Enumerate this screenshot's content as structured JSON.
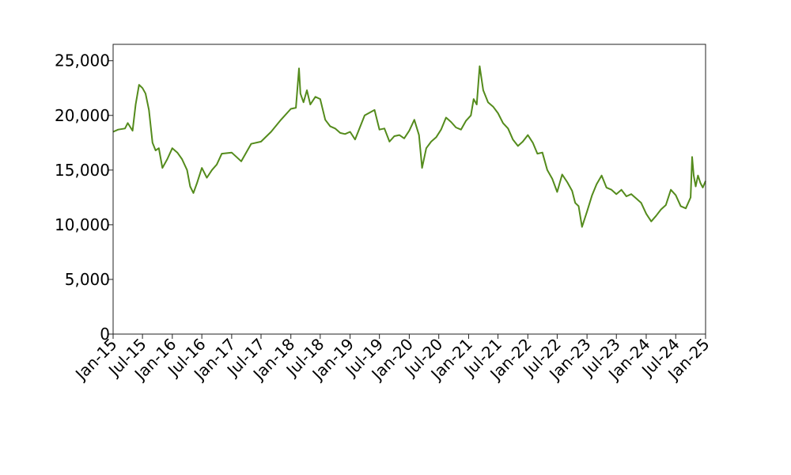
{
  "chart_data": {
    "type": "line",
    "title": "",
    "xlabel": "",
    "ylabel": "",
    "grid": false,
    "legend": "none",
    "color": "#548b1c",
    "xlim": [
      "2015-01-01",
      "2025-01-01"
    ],
    "ylim": [
      0,
      26500
    ],
    "yticks": [
      0,
      5000,
      10000,
      15000,
      20000,
      25000
    ],
    "ytick_labels": [
      "0",
      "5,000",
      "10,000",
      "15,000",
      "20,000",
      "25,000"
    ],
    "xticks": [
      "2015-01-01",
      "2015-07-01",
      "2016-01-01",
      "2016-07-01",
      "2017-01-01",
      "2017-07-01",
      "2018-01-01",
      "2018-07-01",
      "2019-01-01",
      "2019-07-01",
      "2020-01-01",
      "2020-07-01",
      "2021-01-01",
      "2021-07-01",
      "2022-01-01",
      "2022-07-01",
      "2023-01-01",
      "2023-07-01",
      "2024-01-01",
      "2024-07-01",
      "2025-01-01"
    ],
    "xtick_labels": [
      "Jan-15",
      "Jul-15",
      "Jan-16",
      "Jul-16",
      "Jan-17",
      "Jul-17",
      "Jan-18",
      "Jul-18",
      "Jan-19",
      "Jul-19",
      "Jan-20",
      "Jul-20",
      "Jan-21",
      "Jul-21",
      "Jan-22",
      "Jul-22",
      "Jan-23",
      "Jul-23",
      "Jan-24",
      "Jul-24",
      "Jan-25"
    ],
    "series": [
      {
        "x": [
          "2015-01-01",
          "2015-02-01",
          "2015-03-15",
          "2015-04-01",
          "2015-05-01",
          "2015-05-20",
          "2015-06-10",
          "2015-07-01",
          "2015-07-20",
          "2015-08-10",
          "2015-09-01",
          "2015-09-20",
          "2015-10-10",
          "2015-11-01",
          "2015-12-01",
          "2016-01-01",
          "2016-02-01",
          "2016-03-01",
          "2016-04-01",
          "2016-04-20",
          "2016-05-10",
          "2016-06-01",
          "2016-07-01",
          "2016-08-01",
          "2016-09-01",
          "2016-10-01",
          "2016-11-01",
          "2017-01-01",
          "2017-03-01",
          "2017-05-01",
          "2017-07-01",
          "2017-09-01",
          "2017-11-01",
          "2018-01-01",
          "2018-02-01",
          "2018-02-20",
          "2018-03-01",
          "2018-03-20",
          "2018-04-10",
          "2018-05-01",
          "2018-06-01",
          "2018-07-01",
          "2018-08-01",
          "2018-09-01",
          "2018-10-01",
          "2018-11-01",
          "2018-12-01",
          "2019-01-01",
          "2019-02-01",
          "2019-04-01",
          "2019-06-01",
          "2019-07-01",
          "2019-08-01",
          "2019-09-01",
          "2019-10-01",
          "2019-11-01",
          "2019-12-01",
          "2020-01-01",
          "2020-02-01",
          "2020-03-01",
          "2020-03-20",
          "2020-04-15",
          "2020-05-15",
          "2020-06-15",
          "2020-07-15",
          "2020-08-15",
          "2020-09-15",
          "2020-10-15",
          "2020-11-15",
          "2020-12-15",
          "2021-01-15",
          "2021-02-01",
          "2021-02-20",
          "2021-03-10",
          "2021-04-01",
          "2021-05-01",
          "2021-06-01",
          "2021-07-01",
          "2021-08-01",
          "2021-09-01",
          "2021-10-01",
          "2021-11-01",
          "2021-12-01",
          "2022-01-01",
          "2022-02-01",
          "2022-03-01",
          "2022-04-01",
          "2022-05-01",
          "2022-06-01",
          "2022-07-01",
          "2022-08-01",
          "2022-09-01",
          "2022-10-01",
          "2022-10-20",
          "2022-11-10",
          "2022-12-01",
          "2023-01-01",
          "2023-02-01",
          "2023-03-01",
          "2023-04-01",
          "2023-05-01",
          "2023-06-01",
          "2023-07-01",
          "2023-08-01",
          "2023-09-01",
          "2023-10-01",
          "2023-11-01",
          "2023-12-01",
          "2024-01-01",
          "2024-02-01",
          "2024-03-01",
          "2024-04-01",
          "2024-05-01",
          "2024-06-01",
          "2024-07-01",
          "2024-08-01",
          "2024-09-01",
          "2024-10-01",
          "2024-10-10",
          "2024-10-20",
          "2024-11-01",
          "2024-11-15",
          "2024-12-01",
          "2024-12-15",
          "2025-01-01"
        ],
        "y": [
          18500,
          18700,
          18800,
          19300,
          18600,
          21000,
          22800,
          22500,
          22000,
          20500,
          17500,
          16800,
          17000,
          15200,
          16000,
          17000,
          16600,
          16000,
          15000,
          13500,
          12900,
          13800,
          15200,
          14300,
          15000,
          15500,
          16500,
          16600,
          15800,
          17400,
          17600,
          18500,
          19600,
          20600,
          20700,
          24300,
          22000,
          21200,
          22300,
          21000,
          21700,
          21500,
          19600,
          19000,
          18800,
          18400,
          18300,
          18500,
          17800,
          20000,
          20500,
          18700,
          18800,
          17600,
          18100,
          18200,
          17900,
          18600,
          19600,
          18200,
          15200,
          17000,
          17600,
          18000,
          18700,
          19800,
          19400,
          18900,
          18700,
          19500,
          20000,
          21500,
          21000,
          24500,
          22300,
          21200,
          20800,
          20200,
          19300,
          18800,
          17800,
          17200,
          17600,
          18200,
          17500,
          16500,
          16600,
          15000,
          14200,
          13000,
          14600,
          13900,
          13100,
          12000,
          11700,
          9800,
          11200,
          12700,
          13700,
          14500,
          13400,
          13200,
          12800,
          13200,
          12600,
          12800,
          12400,
          12000,
          11000,
          10300,
          10800,
          11400,
          11800,
          13200,
          12700,
          11700,
          11500,
          12500,
          16200,
          14500,
          13500,
          14500,
          13800,
          13400,
          14000
        ]
      }
    ]
  }
}
